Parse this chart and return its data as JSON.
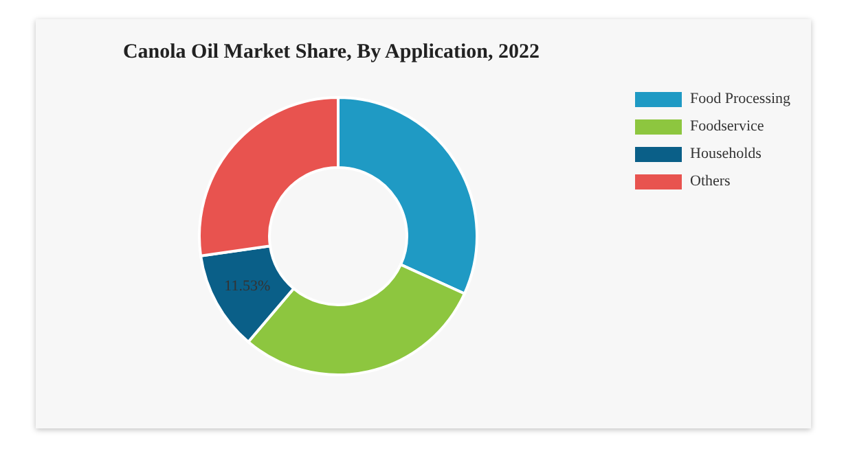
{
  "chart_data": {
    "type": "donut",
    "title": "Canola Oil Market Share, By Application, 2022",
    "categories": [
      "Food Processing",
      "Foodservice",
      "Households",
      "Others"
    ],
    "values": [
      31.8,
      29.4,
      11.53,
      27.27
    ],
    "colors": [
      "#1f9ac4",
      "#8dc63f",
      "#0a5f88",
      "#e8534f"
    ],
    "value_labels": [
      null,
      null,
      "11.53%",
      null
    ],
    "legend": "top right"
  }
}
